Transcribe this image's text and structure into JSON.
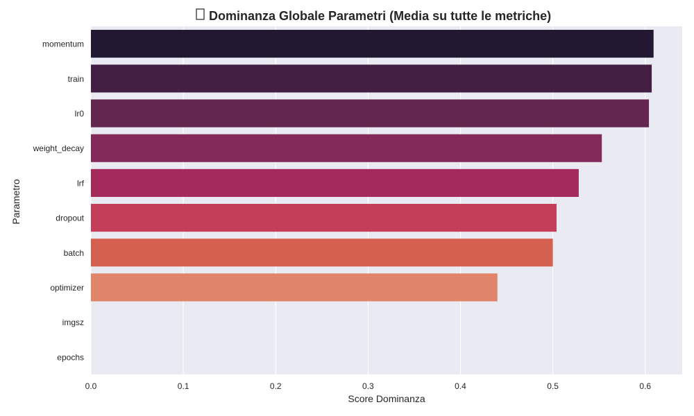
{
  "chart_data": {
    "type": "bar",
    "orientation": "horizontal",
    "title_icon": "bar-chart-icon",
    "title": "Dominanza Globale Parametri (Media su tutte le metriche)",
    "xlabel": "Score Dominanza",
    "ylabel": "Parametro",
    "categories": [
      "momentum",
      "train",
      "lr0",
      "weight_decay",
      "lrf",
      "dropout",
      "batch",
      "optimizer",
      "imgsz",
      "epochs"
    ],
    "values": [
      0.609,
      0.607,
      0.604,
      0.553,
      0.528,
      0.504,
      0.5,
      0.44,
      0.0,
      0.0
    ],
    "xlim": [
      0,
      0.64
    ],
    "xticks": [
      "0.0",
      "0.1",
      "0.2",
      "0.3",
      "0.4",
      "0.5",
      "0.6"
    ],
    "grid": true,
    "background_color": "#eaeaf2",
    "bar_colors": [
      "#221831",
      "#432043",
      "#62264f",
      "#842a5a",
      "#a42a5b",
      "#c33e59",
      "#d6604f",
      "#e0846a",
      "#eaa98b",
      "#f0cfb4"
    ]
  }
}
